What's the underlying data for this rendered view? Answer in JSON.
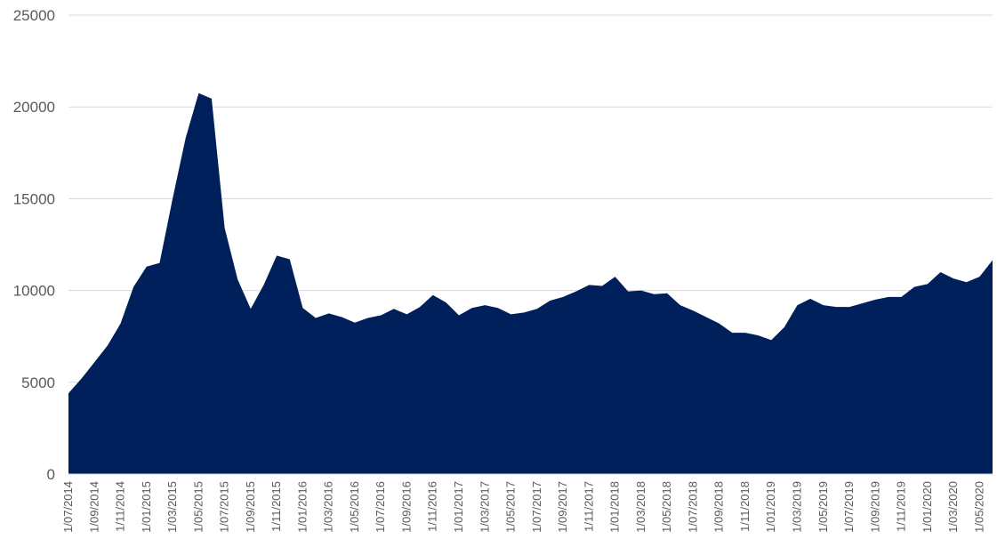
{
  "chart_data": {
    "type": "area",
    "title": "",
    "xlabel": "",
    "ylabel": "",
    "ylim": [
      0,
      25000
    ],
    "yticks": [
      0,
      5000,
      10000,
      15000,
      20000,
      25000
    ],
    "grid": true,
    "legend": "none",
    "color": "#00205b",
    "x": [
      "1/07/2014",
      "1/08/2014",
      "1/09/2014",
      "1/10/2014",
      "1/11/2014",
      "1/12/2014",
      "1/01/2015",
      "1/02/2015",
      "1/03/2015",
      "1/04/2015",
      "1/05/2015",
      "1/06/2015",
      "1/07/2015",
      "1/08/2015",
      "1/09/2015",
      "1/10/2015",
      "1/11/2015",
      "1/12/2015",
      "1/01/2016",
      "1/02/2016",
      "1/03/2016",
      "1/04/2016",
      "1/05/2016",
      "1/06/2016",
      "1/07/2016",
      "1/08/2016",
      "1/09/2016",
      "1/10/2016",
      "1/11/2016",
      "1/12/2016",
      "1/01/2017",
      "1/02/2017",
      "1/03/2017",
      "1/04/2017",
      "1/05/2017",
      "1/06/2017",
      "1/07/2017",
      "1/08/2017",
      "1/09/2017",
      "1/10/2017",
      "1/11/2017",
      "1/12/2017",
      "1/01/2018",
      "1/02/2018",
      "1/03/2018",
      "1/04/2018",
      "1/05/2018",
      "1/06/2018",
      "1/07/2018",
      "1/08/2018",
      "1/09/2018",
      "1/10/2018",
      "1/11/2018",
      "1/12/2018",
      "1/01/2019",
      "1/02/2019",
      "1/03/2019",
      "1/04/2019",
      "1/05/2019",
      "1/06/2019",
      "1/07/2019",
      "1/08/2019",
      "1/09/2019",
      "1/10/2019",
      "1/11/2019",
      "1/12/2019",
      "1/01/2020",
      "1/02/2020",
      "1/03/2020",
      "1/04/2020",
      "1/05/2020",
      "1/06/2020"
    ],
    "x_tick_labels": [
      "1/07/2014",
      "1/09/2014",
      "1/11/2014",
      "1/01/2015",
      "1/03/2015",
      "1/05/2015",
      "1/07/2015",
      "1/09/2015",
      "1/11/2015",
      "1/01/2016",
      "1/03/2016",
      "1/05/2016",
      "1/07/2016",
      "1/09/2016",
      "1/11/2016",
      "1/01/2017",
      "1/03/2017",
      "1/05/2017",
      "1/07/2017",
      "1/09/2017",
      "1/11/2017",
      "1/01/2018",
      "1/03/2018",
      "1/05/2018",
      "1/07/2018",
      "1/09/2018",
      "1/11/2018",
      "1/01/2019",
      "1/03/2019",
      "1/05/2019",
      "1/07/2019",
      "1/09/2019",
      "1/11/2019",
      "1/01/2020",
      "1/03/2020",
      "1/05/2020"
    ],
    "values": [
      4400,
      5200,
      6100,
      7000,
      8200,
      10200,
      11300,
      11500,
      15000,
      18300,
      20750,
      20450,
      13400,
      10600,
      9000,
      10300,
      11900,
      11700,
      9050,
      8500,
      8750,
      8550,
      8250,
      8500,
      8650,
      9000,
      8700,
      9100,
      9750,
      9350,
      8650,
      9050,
      9200,
      9050,
      8700,
      8800,
      9000,
      9450,
      9650,
      9950,
      10300,
      10250,
      10750,
      9950,
      10000,
      9800,
      9850,
      9200,
      8900,
      8550,
      8200,
      7700,
      7700,
      7550,
      7300,
      8000,
      9200,
      9550,
      9200,
      9100,
      9100,
      9300,
      9500,
      9650,
      9650,
      10200,
      10350,
      11000,
      10650,
      10450,
      10750,
      11650
    ]
  }
}
